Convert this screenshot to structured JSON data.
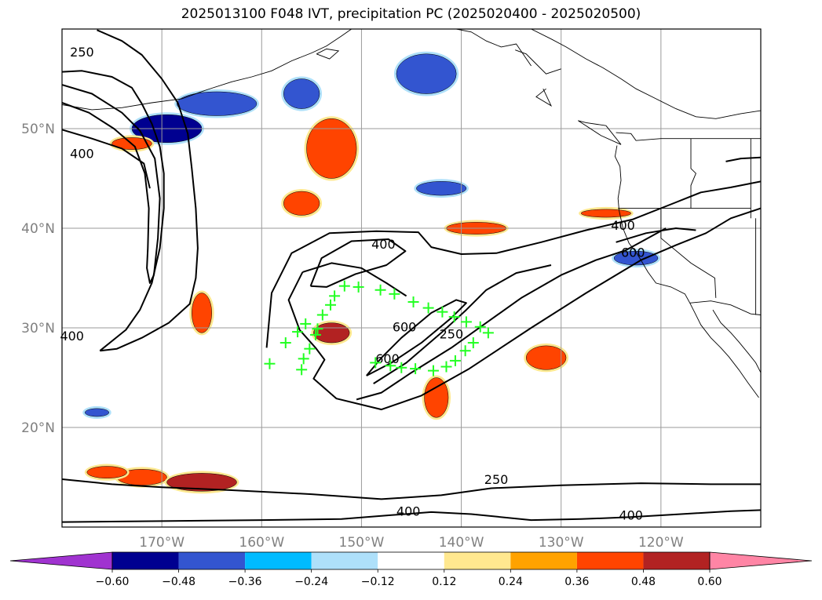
{
  "title": "2025013100 F048 IVT, precipitation PC (2025020400 - 2025020500)",
  "map": {
    "lon_range": [
      -180,
      -110
    ],
    "lat_range": [
      10,
      60
    ],
    "lon_ticks": [
      {
        "lon": -170,
        "label": "170°W"
      },
      {
        "lon": -160,
        "label": "160°W"
      },
      {
        "lon": -150,
        "label": "150°W"
      },
      {
        "lon": -140,
        "label": "140°W"
      },
      {
        "lon": -130,
        "label": "130°W"
      },
      {
        "lon": -120,
        "label": "120°W"
      }
    ],
    "lat_ticks": [
      {
        "lat": 50,
        "label": "50°N"
      },
      {
        "lat": 40,
        "label": "40°N"
      },
      {
        "lat": 30,
        "label": "30°N"
      },
      {
        "lat": 20,
        "label": "20°N"
      }
    ],
    "grid": true,
    "contour_labels": [
      {
        "text": "250",
        "lon": -178.0,
        "lat": 57.6
      },
      {
        "text": "400",
        "lon": -178.0,
        "lat": 47.4
      },
      {
        "text": "400",
        "lon": -179.0,
        "lat": 29.1
      },
      {
        "text": "400",
        "lon": -147.8,
        "lat": 38.3
      },
      {
        "text": "600",
        "lon": -145.7,
        "lat": 30.0
      },
      {
        "text": "600",
        "lon": -147.4,
        "lat": 26.8
      },
      {
        "text": "250",
        "lon": -141.0,
        "lat": 29.3
      },
      {
        "text": "400",
        "lon": -123.8,
        "lat": 40.2
      },
      {
        "text": "600",
        "lon": -122.8,
        "lat": 37.5
      },
      {
        "text": "250",
        "lon": -136.5,
        "lat": 14.7
      },
      {
        "text": "400",
        "lon": -145.3,
        "lat": 11.5
      },
      {
        "text": "400",
        "lon": -123.0,
        "lat": 11.1
      }
    ],
    "markers": [
      [
        -159.2,
        26.4
      ],
      [
        -157.6,
        28.5
      ],
      [
        -156.4,
        29.6
      ],
      [
        -155.6,
        30.4
      ],
      [
        -154.6,
        29.3
      ],
      [
        -155.2,
        27.9
      ],
      [
        -155.8,
        26.9
      ],
      [
        -156.0,
        25.8
      ],
      [
        -154.4,
        29.9
      ],
      [
        -153.9,
        31.3
      ],
      [
        -153.1,
        32.3
      ],
      [
        -152.7,
        33.2
      ],
      [
        -151.7,
        34.2
      ],
      [
        -150.3,
        34.1
      ],
      [
        -148.1,
        33.8
      ],
      [
        -146.7,
        33.4
      ],
      [
        -144.8,
        32.6
      ],
      [
        -143.3,
        32.0
      ],
      [
        -141.9,
        31.6
      ],
      [
        -140.7,
        31.1
      ],
      [
        -139.5,
        30.6
      ],
      [
        -138.1,
        30.1
      ],
      [
        -137.3,
        29.5
      ],
      [
        -138.8,
        28.5
      ],
      [
        -139.6,
        27.7
      ],
      [
        -140.6,
        26.7
      ],
      [
        -141.5,
        26.1
      ],
      [
        -142.8,
        25.7
      ],
      [
        -144.6,
        25.9
      ],
      [
        -146.0,
        26.0
      ],
      [
        -147.1,
        26.2
      ],
      [
        -148.6,
        26.5
      ]
    ],
    "precip_shading": [
      {
        "lon": -169.5,
        "lat": 50.0,
        "rx": 3.5,
        "ry": 1.4,
        "value": -0.48
      },
      {
        "lon": -164.5,
        "lat": 52.5,
        "rx": 4.0,
        "ry": 1.2,
        "value": -0.36
      },
      {
        "lon": -156.0,
        "lat": 53.5,
        "rx": 1.8,
        "ry": 1.5,
        "value": -0.36
      },
      {
        "lon": -143.5,
        "lat": 55.5,
        "rx": 3.0,
        "ry": 2.0,
        "value": -0.36
      },
      {
        "lon": -142.0,
        "lat": 44.0,
        "rx": 2.5,
        "ry": 0.7,
        "value": -0.36
      },
      {
        "lon": -122.5,
        "lat": 37.0,
        "rx": 2.2,
        "ry": 0.7,
        "value": -0.36
      },
      {
        "lon": -176.5,
        "lat": 21.5,
        "rx": 1.2,
        "ry": 0.4,
        "value": -0.36
      },
      {
        "lon": -153.0,
        "lat": 48.0,
        "rx": 2.5,
        "ry": 3.0,
        "value": 0.36
      },
      {
        "lon": -156.0,
        "lat": 42.5,
        "rx": 1.8,
        "ry": 1.2,
        "value": 0.36
      },
      {
        "lon": -138.5,
        "lat": 40.0,
        "rx": 3.0,
        "ry": 0.6,
        "value": 0.36
      },
      {
        "lon": -125.5,
        "lat": 41.5,
        "rx": 2.5,
        "ry": 0.4,
        "value": 0.36
      },
      {
        "lon": -166.0,
        "lat": 31.5,
        "rx": 1.0,
        "ry": 2.0,
        "value": 0.36
      },
      {
        "lon": -153.0,
        "lat": 29.5,
        "rx": 1.8,
        "ry": 1.0,
        "value": 0.48
      },
      {
        "lon": -142.5,
        "lat": 23.0,
        "rx": 1.2,
        "ry": 2.0,
        "value": 0.36
      },
      {
        "lon": -131.5,
        "lat": 27.0,
        "rx": 2.0,
        "ry": 1.2,
        "value": 0.36
      },
      {
        "lon": -173.0,
        "lat": 48.5,
        "rx": 2.0,
        "ry": 0.6,
        "value": 0.36
      },
      {
        "lon": -172.0,
        "lat": 15.0,
        "rx": 2.5,
        "ry": 0.8,
        "value": 0.36
      },
      {
        "lon": -166.0,
        "lat": 14.5,
        "rx": 3.5,
        "ry": 0.9,
        "value": 0.48
      },
      {
        "lon": -175.5,
        "lat": 15.5,
        "rx": 2.0,
        "ry": 0.6,
        "value": 0.36
      }
    ]
  },
  "colorbar": {
    "colors": [
      "#a033d0",
      "#000090",
      "#3355d0",
      "#00bbff",
      "#aee0fa",
      "#ffffff",
      "#ffe88f",
      "#ffa200",
      "#ff4400",
      "#b22222",
      "#ff85a5"
    ],
    "labels": [
      "−0.60",
      "−0.48",
      "−0.36",
      "−0.24",
      "−0.12",
      "0.12",
      "0.24",
      "0.36",
      "0.48",
      "0.60"
    ]
  }
}
